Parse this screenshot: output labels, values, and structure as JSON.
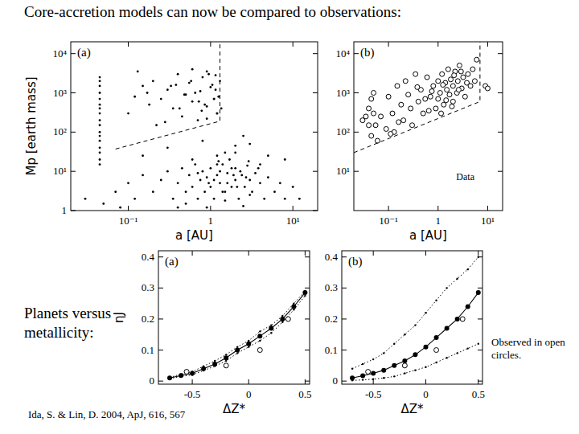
{
  "title": "Core-accretion models can now be compared to observations:",
  "side_label": "Planets versus metallicity:",
  "legend_note": "Observed in open circles.",
  "citation": "Ida, S. & Lin, D. 2004, ApJ, 616, 567",
  "chart_data": [
    {
      "type": "scatter",
      "panel_label": "(a)",
      "xlabel": "a [AU]",
      "ylabel": "Mp [earth mass]",
      "log": true,
      "grid": false,
      "xlim": [
        0.02,
        20
      ],
      "ylim": [
        1,
        20000
      ],
      "xticks": [
        {
          "value": 0.1,
          "label": "10⁻¹"
        },
        1,
        {
          "value": 10,
          "label": "10¹"
        }
      ],
      "yticks": [
        1,
        {
          "value": 10,
          "label": "10¹"
        },
        {
          "value": 100,
          "label": "10²"
        },
        {
          "value": 1000,
          "label": "10³"
        },
        {
          "value": 10000,
          "label": "10⁴"
        }
      ],
      "series": [
        {
          "type": "scatter",
          "color": "#000000",
          "marker": "dot",
          "x": [
            0.1,
            0.12,
            0.15,
            0.18,
            0.2,
            0.22,
            0.25,
            0.3,
            0.35,
            0.4,
            0.45,
            0.5,
            0.55,
            0.6,
            0.7,
            0.75,
            0.8,
            0.9,
            1.0,
            1.1,
            1.2,
            1.3,
            0.65,
            0.85,
            1.05,
            1.25,
            0.95,
            1.15,
            0.72,
            0.58,
            0.48,
            0.33,
            1.35,
            0.13,
            0.6,
            0.9,
            0.28,
            0.9,
            1.2,
            0.42,
            1.1,
            0.17,
            0.38,
            1.15,
            0.78,
            0.3,
            0.8,
            1.5,
            2.5,
            3,
            5,
            0.6,
            1.2,
            4,
            8,
            0.15,
            2,
            0.045,
            0.045,
            0.045,
            0.045,
            0.045,
            0.045,
            0.045,
            0.045,
            0.045,
            0.045,
            0.045,
            0.045,
            0.045,
            0.045,
            0.045,
            0.045,
            0.045,
            0.03,
            0.05,
            0.07,
            0.1,
            0.12,
            0.15,
            0.2,
            0.25,
            0.3,
            0.35,
            0.4,
            0.45,
            0.5,
            0.55,
            0.6,
            0.65,
            0.7,
            0.75,
            0.8,
            0.85,
            0.9,
            1.0,
            1.0,
            1.1,
            1.2,
            1.3,
            1.4,
            1.5,
            1.6,
            1.7,
            1.8,
            2.0,
            2.0,
            2.2,
            2.4,
            2.6,
            2.8,
            3.0,
            3.2,
            3.5,
            4,
            4.5,
            5,
            6,
            7,
            8,
            10,
            12,
            0.5,
            0.9,
            1.5,
            2.5,
            3,
            1.2,
            2.0,
            0.4,
            0.08,
            1.1,
            1.3,
            1.6,
            1.9,
            2.3,
            2.7,
            1.4,
            1.8,
            2.1,
            0.7,
            0.95,
            3.8,
            2.9,
            1.25
          ],
          "values": [
            300,
            800,
            1500,
            500,
            2000,
            150,
            700,
            1200,
            400,
            3000,
            250,
            900,
            1800,
            600,
            200,
            1100,
            2500,
            450,
            1400,
            700,
            300,
            2000,
            1000,
            500,
            1600,
            800,
            3000,
            1200,
            600,
            2000,
            900,
            1500,
            400,
            3500,
            4000,
            3500,
            180,
            220,
            300,
            400,
            700,
            1000,
            1600,
            2800,
            350,
            40,
            60,
            30,
            80,
            50,
            25,
            20,
            15,
            15,
            20,
            25,
            45,
            15,
            20,
            30,
            40,
            60,
            80,
            100,
            150,
            200,
            300,
            400,
            500,
            700,
            1000,
            1500,
            2000,
            2500,
            2,
            1.5,
            3,
            5,
            2,
            8,
            3,
            6,
            10,
            2,
            5,
            12,
            3,
            8,
            4,
            15,
            2,
            6,
            10,
            3,
            7,
            4,
            12,
            2,
            8,
            5,
            15,
            3,
            9,
            20,
            4,
            6,
            12,
            2,
            8,
            4,
            14,
            6,
            3,
            9,
            5,
            2,
            7,
            3,
            5,
            2,
            4,
            2,
            1.5,
            1.2,
            1.8,
            1.3,
            2.5,
            25,
            30,
            1.2,
            1.2,
            6,
            10,
            5,
            8,
            10,
            7,
            3,
            12,
            4,
            9,
            5,
            12,
            18,
            18
          ]
        },
        {
          "type": "line",
          "color": "#000000",
          "line_style": "dashed",
          "x": [
            0.07,
            1.3,
            1.3
          ],
          "values": [
            37,
            190,
            20000
          ]
        }
      ]
    },
    {
      "type": "scatter",
      "panel_label": "(b)",
      "annotation": "Data",
      "xlabel": "a [AU]",
      "log": true,
      "grid": false,
      "xlim": [
        0.02,
        20
      ],
      "ylim": [
        1,
        20000
      ],
      "xticks": [
        {
          "value": 0.1,
          "label": "10⁻¹"
        },
        1,
        {
          "value": 10,
          "label": "10¹"
        }
      ],
      "yticks": [
        {
          "value": 10,
          "label": "10¹"
        },
        {
          "value": 100,
          "label": "10²"
        },
        {
          "value": 1000,
          "label": "10³"
        },
        {
          "value": 10000,
          "label": "10⁴"
        }
      ],
      "series": [
        {
          "type": "scatter",
          "color": "#000000",
          "marker": "open_circle",
          "x": [
            0.03,
            0.035,
            0.04,
            0.04,
            0.045,
            0.05,
            0.05,
            0.055,
            0.045,
            0.06,
            0.07,
            0.09,
            0.1,
            0.12,
            0.13,
            0.15,
            0.18,
            0.2,
            0.22,
            0.25,
            0.3,
            0.35,
            0.4,
            0.45,
            0.5,
            0.6,
            0.7,
            0.8,
            0.9,
            1.0,
            1.0,
            1.1,
            1.2,
            1.3,
            1.4,
            1.5,
            1.6,
            1.7,
            1.8,
            2.0,
            2.0,
            2.2,
            2.4,
            2.5,
            2.7,
            3.0,
            3.2,
            3.5,
            4.0,
            4.5,
            5.0,
            5.5,
            6,
            0.28,
            0.65,
            1.15,
            1.9,
            0.16,
            0.75,
            1.45,
            2.9,
            3.8,
            0.11,
            0.38,
            0.55,
            1.25,
            2.1,
            2.6,
            9,
            10
          ],
          "values": [
            200,
            250,
            400,
            150,
            700,
            300,
            1000,
            150,
            80,
            60,
            250,
            120,
            800,
            300,
            100,
            1500,
            500,
            200,
            2000,
            900,
            150,
            3000,
            600,
            1200,
            300,
            2500,
            800,
            1500,
            400,
            2000,
            700,
            1000,
            3000,
            500,
            1800,
            1200,
            4000,
            900,
            2200,
            1500,
            600,
            3500,
            1000,
            2000,
            5000,
            1300,
            2500,
            800,
            3000,
            1500,
            4000,
            2000,
            7000,
            400,
            350,
            300,
            450,
            180,
            1100,
            650,
            3500,
            1800,
            90,
            1400,
            700,
            1600,
            2800,
            1200,
            1500,
            1300
          ]
        },
        {
          "type": "line",
          "color": "#000000",
          "line_style": "dashed",
          "x": [
            0.02,
            7,
            7
          ],
          "values": [
            30,
            600,
            20000
          ]
        }
      ]
    },
    {
      "type": "line",
      "panel_label": "(a)",
      "xlabel": "ΔZ*",
      "ylabel": "ηJ",
      "grid": false,
      "xlim": [
        -0.8,
        0.54
      ],
      "ylim": [
        -0.01,
        0.42
      ],
      "xticks": [
        -0.5,
        0,
        0.5
      ],
      "yticks": [
        0,
        0.1,
        0.2,
        0.3,
        0.4
      ],
      "series": [
        {
          "type": "line",
          "color": "#000000",
          "marker": "filled_circle",
          "line_style": "solid",
          "x": [
            -0.7,
            -0.6,
            -0.5,
            -0.4,
            -0.3,
            -0.2,
            -0.1,
            0,
            0.1,
            0.2,
            0.3,
            0.4,
            0.5
          ],
          "values": [
            0.01,
            0.018,
            0.025,
            0.04,
            0.055,
            0.075,
            0.1,
            0.12,
            0.145,
            0.17,
            0.2,
            0.24,
            0.285
          ]
        },
        {
          "type": "line",
          "color": "#000000",
          "marker": "dot",
          "line_style": "dotted",
          "x": [
            -0.7,
            -0.6,
            -0.5,
            -0.4,
            -0.3,
            -0.2,
            -0.1,
            0,
            0.1,
            0.2,
            0.3,
            0.4,
            0.5
          ],
          "values": [
            0.012,
            0.022,
            0.03,
            0.048,
            0.065,
            0.085,
            0.11,
            0.13,
            0.16,
            0.18,
            0.21,
            0.25,
            0.29
          ]
        },
        {
          "type": "line",
          "color": "#000000",
          "marker": "dot",
          "line_style": "dotted",
          "x": [
            -0.7,
            -0.6,
            -0.5,
            -0.4,
            -0.3,
            -0.2,
            -0.1,
            0,
            0.1,
            0.2,
            0.3,
            0.4,
            0.5
          ],
          "values": [
            0.008,
            0.015,
            0.02,
            0.034,
            0.048,
            0.065,
            0.09,
            0.11,
            0.13,
            0.155,
            0.19,
            0.23,
            0.275
          ]
        },
        {
          "type": "scatter",
          "color": "#000000",
          "marker": "open_circle",
          "x": [
            -0.55,
            -0.2,
            0.1,
            0.35
          ],
          "values": [
            0.03,
            0.05,
            0.1,
            0.2
          ]
        }
      ]
    },
    {
      "type": "line",
      "panel_label": "(b)",
      "xlabel": "ΔZ*",
      "grid": false,
      "xlim": [
        -0.8,
        0.54
      ],
      "ylim": [
        -0.01,
        0.42
      ],
      "xticks": [
        -0.5,
        0,
        0.5
      ],
      "yticks": [
        0,
        0.1,
        0.2,
        0.3,
        0.4
      ],
      "series": [
        {
          "type": "line",
          "color": "#000000",
          "marker": "filled_circle",
          "line_style": "solid",
          "x": [
            -0.7,
            -0.6,
            -0.5,
            -0.4,
            -0.3,
            -0.2,
            -0.1,
            0,
            0.1,
            0.2,
            0.3,
            0.4,
            0.5
          ],
          "values": [
            0.01,
            0.017,
            0.025,
            0.035,
            0.05,
            0.065,
            0.085,
            0.11,
            0.14,
            0.17,
            0.2,
            0.24,
            0.285
          ]
        },
        {
          "type": "line",
          "color": "#000000",
          "marker": "dot",
          "line_style": "dotted",
          "x": [
            -0.7,
            -0.6,
            -0.5,
            -0.4,
            -0.3,
            -0.2,
            -0.1,
            0,
            0.1,
            0.2,
            0.3,
            0.4,
            0.5
          ],
          "values": [
            0.04,
            0.055,
            0.07,
            0.09,
            0.12,
            0.15,
            0.18,
            0.22,
            0.26,
            0.3,
            0.33,
            0.36,
            0.4
          ]
        },
        {
          "type": "line",
          "color": "#000000",
          "marker": "dot",
          "line_style": "dotted",
          "x": [
            -0.7,
            -0.6,
            -0.5,
            -0.4,
            -0.3,
            -0.2,
            -0.1,
            0,
            0.1,
            0.2,
            0.3,
            0.4,
            0.5
          ],
          "values": [
            0.002,
            0.004,
            0.006,
            0.01,
            0.015,
            0.025,
            0.035,
            0.045,
            0.06,
            0.075,
            0.09,
            0.105,
            0.12
          ]
        },
        {
          "type": "scatter",
          "color": "#000000",
          "marker": "open_circle",
          "x": [
            -0.55,
            -0.2,
            0.1,
            0.35
          ],
          "values": [
            0.03,
            0.05,
            0.1,
            0.2
          ]
        }
      ]
    }
  ]
}
